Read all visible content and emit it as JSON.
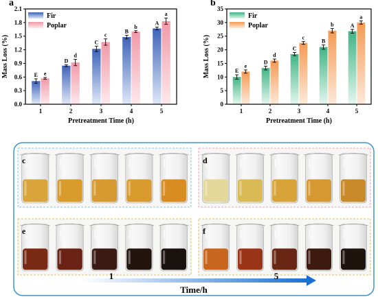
{
  "chart_data": [
    {
      "type": "bar",
      "panel": "a",
      "xlabel": "Pretreatment Time (h)",
      "ylabel": "Mass Loss (%)",
      "categories": [
        "1",
        "2",
        "3",
        "4",
        "5"
      ],
      "ylim": [
        0,
        2.1
      ],
      "yticks": [
        "0.0",
        "0.3",
        "0.6",
        "0.9",
        "1.2",
        "1.5",
        "1.8",
        "2.1"
      ],
      "legend_position": "top-left",
      "series": [
        {
          "name": "Fir",
          "values": [
            0.51,
            0.85,
            1.22,
            1.48,
            1.67
          ],
          "errors": [
            0.05,
            0.02,
            0.06,
            0.04,
            0.03
          ],
          "letters": [
            "E",
            "D",
            "C",
            "B",
            "A"
          ],
          "color": "#5b7fcf"
        },
        {
          "name": "Poplar",
          "values": [
            0.57,
            0.92,
            1.37,
            1.6,
            1.83
          ],
          "errors": [
            0.02,
            0.07,
            0.07,
            0.02,
            0.07
          ],
          "letters": [
            "e",
            "d",
            "c",
            "b",
            "a"
          ],
          "color": "#f4a6b0"
        }
      ]
    },
    {
      "type": "bar",
      "panel": "b",
      "xlabel": "Pretreatment Time (h)",
      "ylabel": "Mass Loss (%)",
      "categories": [
        "1",
        "2",
        "3",
        "4",
        "5"
      ],
      "ylim": [
        0,
        35
      ],
      "yticks": [
        "0",
        "5",
        "10",
        "15",
        "20",
        "25",
        "30",
        "35"
      ],
      "legend_position": "top-left",
      "series": [
        {
          "name": "Fir",
          "values": [
            10.0,
            13.3,
            18.4,
            21.0,
            26.8
          ],
          "errors": [
            0.8,
            0.7,
            0.6,
            0.8,
            0.7
          ],
          "letters": [
            "E",
            "D",
            "C",
            "B",
            "A"
          ],
          "color": "#4fbf8f"
        },
        {
          "name": "Poplar",
          "values": [
            12.0,
            16.0,
            22.5,
            27.0,
            30.0
          ],
          "errors": [
            0.6,
            0.6,
            0.5,
            0.8,
            0.6
          ],
          "letters": [
            "e",
            "d",
            "c",
            "b",
            "a"
          ],
          "color": "#f6a86a"
        }
      ]
    }
  ],
  "photo_panel": {
    "panels": [
      {
        "label": "c",
        "border_color": "#7fc8e8",
        "liquid_colors": [
          "#d9a53a",
          "#d89b2c",
          "#d69a30",
          "#d99a2e",
          "#d88c22"
        ]
      },
      {
        "label": "d",
        "border_color": "#f0a0b8",
        "liquid_colors": [
          "#e3d89a",
          "#d9ba55",
          "#d8a43a",
          "#d69830",
          "#c98a2a"
        ]
      },
      {
        "label": "e",
        "border_color": "#e0c060",
        "liquid_colors": [
          "#7a2a12",
          "#6a2214",
          "#3a1a12",
          "#24140e",
          "#1a120e"
        ]
      },
      {
        "label": "f",
        "border_color": "#e0c060",
        "liquid_colors": [
          "#c8661e",
          "#9a3416",
          "#6a2614",
          "#3c1a10",
          "#1e140e"
        ]
      }
    ],
    "axis": {
      "start_label": "1",
      "end_label": "5",
      "title": "Time/h",
      "color": "#1a6fd0"
    },
    "frame_color": "#3f93c9"
  }
}
